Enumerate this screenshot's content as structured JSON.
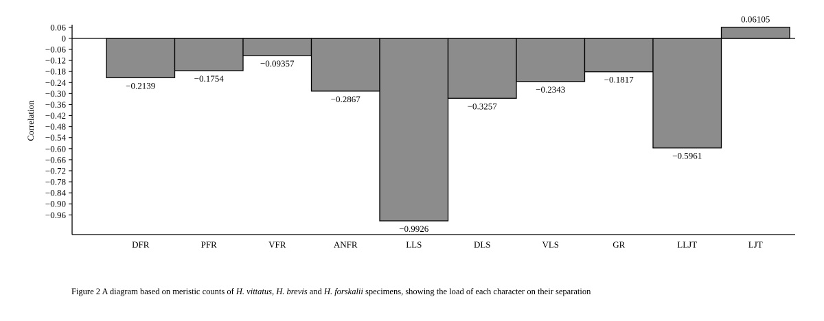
{
  "chart_data": {
    "type": "bar",
    "ylabel": "Correlation",
    "xlabel": "",
    "categories": [
      "DFR",
      "PFR",
      "VFR",
      "ANFR",
      "LLS",
      "DLS",
      "VLS",
      "GR",
      "LLJT",
      "LJT"
    ],
    "values": [
      -0.2139,
      -0.1754,
      -0.09357,
      -0.2867,
      -0.9926,
      -0.3257,
      -0.2343,
      -0.1817,
      -0.5961,
      0.06105
    ],
    "value_labels": [
      "−0.2139",
      "−0.1754",
      "−0.09357",
      "−0.2867",
      "−0.9926",
      "−0.3257",
      "−0.2343",
      "−0.1817",
      "−0.5961",
      "0.06105"
    ],
    "ytick_values": [
      0.06,
      0,
      -0.06,
      -0.12,
      -0.18,
      -0.24,
      -0.3,
      -0.36,
      -0.42,
      -0.48,
      -0.54,
      -0.6,
      -0.66,
      -0.72,
      -0.78,
      -0.84,
      -0.9,
      -0.96
    ],
    "ytick_labels": [
      "0.06",
      "0",
      "−0.06",
      "−0.12",
      "−0.18",
      "−0.24",
      "−0.30",
      "−0.36",
      "−0.42",
      "−0.48",
      "−0.54",
      "−0.60",
      "−0.66",
      "−0.72",
      "−0.78",
      "−0.84",
      "−0.90",
      "−0.96"
    ],
    "ylim": [
      -1.06,
      0.06
    ],
    "grid": false,
    "legend": "none",
    "bar_color": "#8c8c8c"
  },
  "caption": {
    "prefix": "Figure 2 A diagram based on meristic counts of ",
    "species1": "H. vittatus",
    "sep1": ", ",
    "species2": "H. brevis",
    "sep2": " and ",
    "species3": "H. forskalii",
    "suffix": " specimens, showing the load of each character on their separation"
  }
}
